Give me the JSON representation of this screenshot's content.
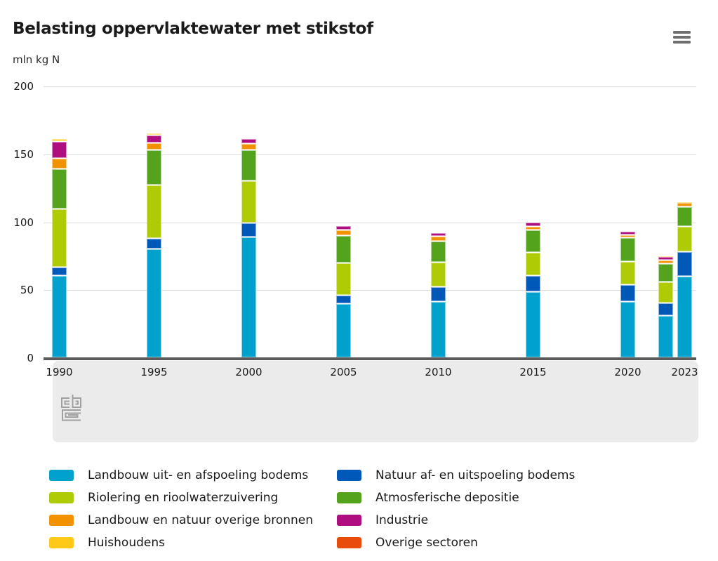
{
  "header": {
    "title": "Belasting oppervlaktewater met stikstof",
    "unit_label": "mln kg N",
    "menu_icon": "hamburger-icon"
  },
  "footer": {
    "logo_icon": "cbs-logo"
  },
  "colors": {
    "grid": "#dcdcdc",
    "axis": "#5a5a5a",
    "band_background": "#ebebeb",
    "menu_icon": "#6e6e6e",
    "logo_stroke": "#a0a0a0",
    "text": "#1a1a1a"
  },
  "chart_data": {
    "type": "bar",
    "stacked": true,
    "title": "Belasting oppervlaktewater met stikstof",
    "ylabel": "mln kg N",
    "ylim": [
      0,
      200
    ],
    "yticks": [
      0,
      50,
      100,
      150,
      200
    ],
    "grid": true,
    "legend_position": "bottom",
    "x": [
      1990,
      1995,
      2000,
      2005,
      2010,
      2015,
      2020,
      2022,
      2023
    ],
    "x_tick_labels": [
      "1990",
      "1995",
      "2000",
      "2005",
      "2010",
      "2015",
      "2020",
      "2023"
    ],
    "series": [
      {
        "name": "Landbouw uit- en afspoeling bodems",
        "color": "#00a1cd",
        "values": [
          60.5,
          80,
          89,
          40,
          41.5,
          48.5,
          41.5,
          31,
          60
        ]
      },
      {
        "name": "Natuur af- en uitspoeling bodems",
        "color": "#0058b8",
        "values": [
          6,
          8,
          10,
          6,
          10.5,
          12,
          12.5,
          9.5,
          18
        ]
      },
      {
        "name": "Riolering en rioolwaterzuivering",
        "color": "#afcb05",
        "values": [
          43,
          39,
          31,
          24,
          18.5,
          17,
          17,
          15.5,
          18.5
        ]
      },
      {
        "name": "Atmosferische depositie",
        "color": "#53a31d",
        "values": [
          29.5,
          26,
          23,
          20,
          15.5,
          16.5,
          17.5,
          13.5,
          14.5
        ]
      },
      {
        "name": "Landbouw en natuur overige bronnen",
        "color": "#f39200",
        "values": [
          8,
          5,
          4.5,
          4,
          3.5,
          2.5,
          2,
          2.5,
          3
        ]
      },
      {
        "name": "Industrie",
        "color": "#af0e80",
        "values": [
          12,
          6,
          3.5,
          3,
          2.5,
          3,
          2.5,
          2.5,
          0
        ]
      },
      {
        "name": "Huishoudens",
        "color": "#ffc917",
        "values": [
          2,
          1.5,
          0,
          0,
          0,
          0,
          0,
          0.5,
          0.5
        ]
      },
      {
        "name": "Overige sectoren",
        "color": "#e94c0a",
        "values": [
          0,
          0,
          0,
          0,
          0,
          0,
          0,
          0,
          0
        ]
      }
    ]
  }
}
